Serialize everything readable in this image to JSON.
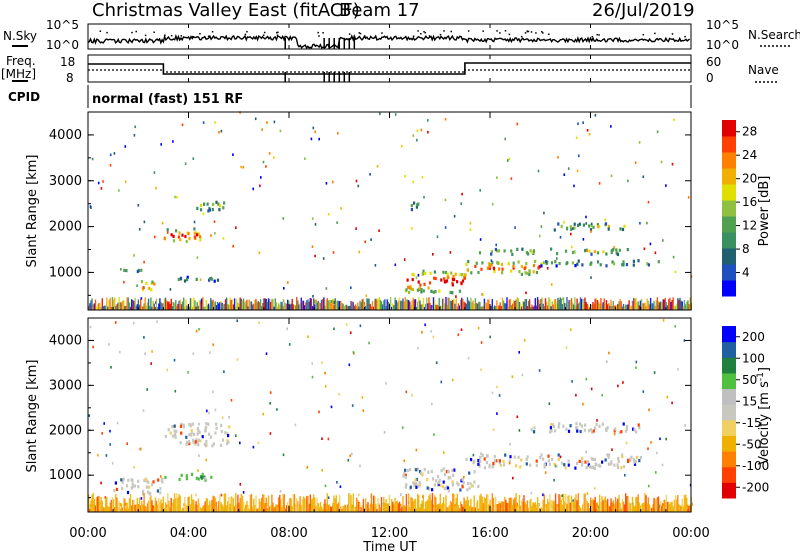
{
  "header": {
    "station": "Christmas Valley East (fitACF)",
    "beam": "Beam 17",
    "date": "26/Jul/2019"
  },
  "left_labels": {
    "nsky": "N.Sky",
    "freq": "Freq.",
    "freq_unit": "[MHz]",
    "cpid": "CPID"
  },
  "right_labels": {
    "nsearch": "N.Search",
    "nave": "Nave"
  },
  "cpid_text": "normal (fast) 151 RF",
  "noise_axis": {
    "left_ticks": [
      "10^5",
      "10^0"
    ],
    "right_ticks": [
      "10^5",
      "10^0"
    ]
  },
  "freq_axis": {
    "left_ticks": [
      "18",
      "8"
    ],
    "right_ticks": [
      "60",
      "0"
    ]
  },
  "colors": {
    "scale_power": [
      "#0000ff",
      "#2050c0",
      "#206070",
      "#3a9060",
      "#50a050",
      "#90c040",
      "#e0e000",
      "#f0b000",
      "#ff8000",
      "#ff4000",
      "#e00000"
    ],
    "scale_velocity": [
      "#e00000",
      "#ff4000",
      "#ff8000",
      "#f0b000",
      "#f0d060",
      "#c8c8c0",
      "#c0c0c0",
      "#50c040",
      "#208040",
      "#2060a0",
      "#0000ff"
    ]
  },
  "chart_data": [
    {
      "type": "heatmap",
      "title": "",
      "ylabel": "Slant Range [km]",
      "xlabel": "",
      "x_ticks": [
        "00:00",
        "04:00",
        "08:00",
        "12:00",
        "16:00",
        "20:00",
        "00:00"
      ],
      "y_ticks": [
        1000,
        2000,
        3000,
        4000
      ],
      "xlim_hours": [
        0,
        24
      ],
      "ylim": [
        180,
        4500
      ],
      "colorbar": {
        "label": "Power [dB]",
        "ticks": [
          4,
          8,
          12,
          16,
          20,
          24,
          28
        ],
        "range": [
          0,
          30
        ]
      },
      "features": [
        {
          "t_start": 2.0,
          "t_end": 2.6,
          "range_km": 700,
          "width_km": 260,
          "level": 0.85
        },
        {
          "t_start": 1.2,
          "t_end": 2.1,
          "range_km": 1050,
          "width_km": 90,
          "level": 0.35
        },
        {
          "t_start": 3.0,
          "t_end": 4.5,
          "range_km": 1800,
          "width_km": 300,
          "level": 0.9
        },
        {
          "t_start": 4.3,
          "t_end": 5.6,
          "range_km": 2450,
          "width_km": 220,
          "level": 0.45
        },
        {
          "t_start": 3.0,
          "t_end": 5.6,
          "range_km": 850,
          "width_km": 90,
          "level": 0.3
        },
        {
          "t_start": 8.5,
          "t_end": 9.8,
          "range_km": 380,
          "width_km": 80,
          "level": 0.7
        },
        {
          "t_start": 12.6,
          "t_end": 15.0,
          "range_km": 800,
          "width_km": 500,
          "level": 0.95
        },
        {
          "t_start": 15.0,
          "t_end": 18.0,
          "range_km": 1100,
          "width_km": 300,
          "level": 0.85
        },
        {
          "t_start": 15.5,
          "t_end": 21.5,
          "range_km": 1450,
          "width_km": 120,
          "level": 0.5
        },
        {
          "t_start": 18.5,
          "t_end": 21.5,
          "range_km": 2000,
          "width_km": 150,
          "level": 0.55
        },
        {
          "t_start": 18.0,
          "t_end": 23.0,
          "range_km": 1200,
          "width_km": 120,
          "level": 0.4
        },
        {
          "t_start": 12.8,
          "t_end": 13.2,
          "range_km": 2450,
          "width_km": 250,
          "level": 0.4
        }
      ]
    },
    {
      "type": "heatmap",
      "title": "",
      "ylabel": "Slant Range [km]",
      "xlabel": "Time UT",
      "x_ticks": [
        "00:00",
        "04:00",
        "08:00",
        "12:00",
        "16:00",
        "20:00",
        "00:00"
      ],
      "y_ticks": [
        1000,
        2000,
        3000,
        4000
      ],
      "xlim_hours": [
        0,
        24
      ],
      "ylim": [
        180,
        4500
      ],
      "colorbar": {
        "label": "Velocity [m s^-1]",
        "ticks": [
          200,
          100,
          50,
          15,
          -15,
          -50,
          -100,
          -200
        ],
        "range": [
          -250,
          250
        ]
      },
      "features": [
        {
          "t_start": 1.0,
          "t_end": 3.0,
          "range_km": 750,
          "width_km": 350,
          "level": 0.45
        },
        {
          "t_start": 3.0,
          "t_end": 5.6,
          "range_km": 1900,
          "width_km": 500,
          "level": 0.45
        },
        {
          "t_start": 3.0,
          "t_end": 5.0,
          "range_km": 950,
          "width_km": 150,
          "level": 0.7
        },
        {
          "t_start": 12.5,
          "t_end": 15.5,
          "range_km": 900,
          "width_km": 500,
          "level": 0.45
        },
        {
          "t_start": 15.0,
          "t_end": 22.0,
          "range_km": 1300,
          "width_km": 300,
          "level": 0.45
        },
        {
          "t_start": 17.5,
          "t_end": 22.0,
          "range_km": 2050,
          "width_km": 200,
          "level": 0.45
        },
        {
          "t_start": 0.0,
          "t_end": 24.0,
          "range_km": 300,
          "width_km": 120,
          "level": 0.2
        }
      ]
    }
  ]
}
